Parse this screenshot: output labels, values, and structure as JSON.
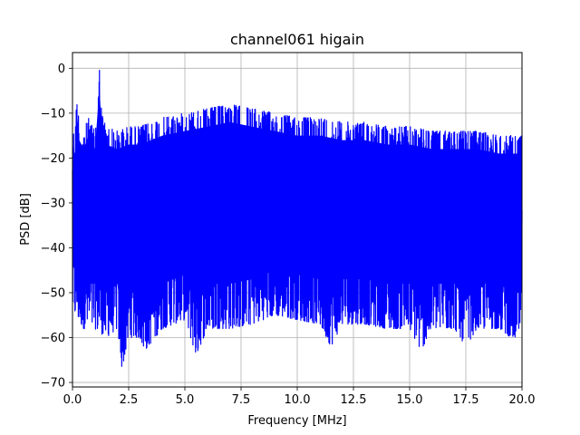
{
  "chart_data": {
    "type": "line",
    "title": "channel061 higain",
    "xlabel": "Frequency [MHz]",
    "ylabel": "PSD [dB]",
    "xlim": [
      0,
      20
    ],
    "ylim": [
      -71,
      3.5
    ],
    "xticks": [
      0,
      2.5,
      5,
      7.5,
      10,
      12.5,
      15,
      17.5,
      20
    ],
    "xtick_labels": [
      "0.0",
      "2.5",
      "5.0",
      "7.5",
      "10.0",
      "12.5",
      "15.0",
      "17.5",
      "20.0"
    ],
    "yticks": [
      0,
      -10,
      -20,
      -30,
      -40,
      -50,
      -60,
      -70
    ],
    "ytick_labels": [
      "0",
      "−10",
      "−20",
      "−30",
      "−40",
      "−50",
      "−60",
      "−70"
    ],
    "grid": true,
    "legend": false,
    "series": [
      {
        "color": "#0000ff",
        "upper_envelope": {
          "x": [
            0,
            0.1,
            0.2,
            0.3,
            0.5,
            0.7,
            0.9,
            1.0,
            1.2,
            1.3,
            1.5,
            2.0,
            2.5,
            3.0,
            4.0,
            5.0,
            6.0,
            7.0,
            8.0,
            9.0,
            10.0,
            11.0,
            12.0,
            13.0,
            14.0,
            15.0,
            16.0,
            17.0,
            18.0,
            19.0,
            20.0
          ],
          "y": [
            -13,
            -15,
            -6,
            -12,
            -14,
            -11,
            -13,
            -14,
            0,
            -10,
            -13,
            -14,
            -13,
            -13,
            -11,
            -10,
            -9,
            -8,
            -9,
            -10,
            -11,
            -11,
            -12,
            -12,
            -13,
            -13,
            -14,
            -14,
            -14,
            -15,
            -15
          ]
        },
        "lower_envelope": {
          "x": [
            0,
            0.5,
            1.0,
            1.5,
            2.0,
            2.2,
            2.5,
            3.0,
            3.2,
            4.0,
            5.0,
            5.5,
            6.0,
            7.0,
            8.0,
            9.0,
            10.0,
            11.0,
            11.5,
            12.0,
            13.0,
            14.0,
            15.0,
            15.5,
            16.0,
            17.0,
            17.5,
            18.0,
            19.0,
            19.5,
            20.0
          ],
          "y": [
            -54,
            -58,
            -58,
            -60,
            -58,
            -67,
            -60,
            -60,
            -63,
            -58,
            -56,
            -64,
            -58,
            -58,
            -57,
            -55,
            -56,
            -57,
            -62,
            -57,
            -57,
            -58,
            -58,
            -63,
            -58,
            -58,
            -62,
            -58,
            -58,
            -60,
            -60
          ]
        }
      }
    ]
  }
}
